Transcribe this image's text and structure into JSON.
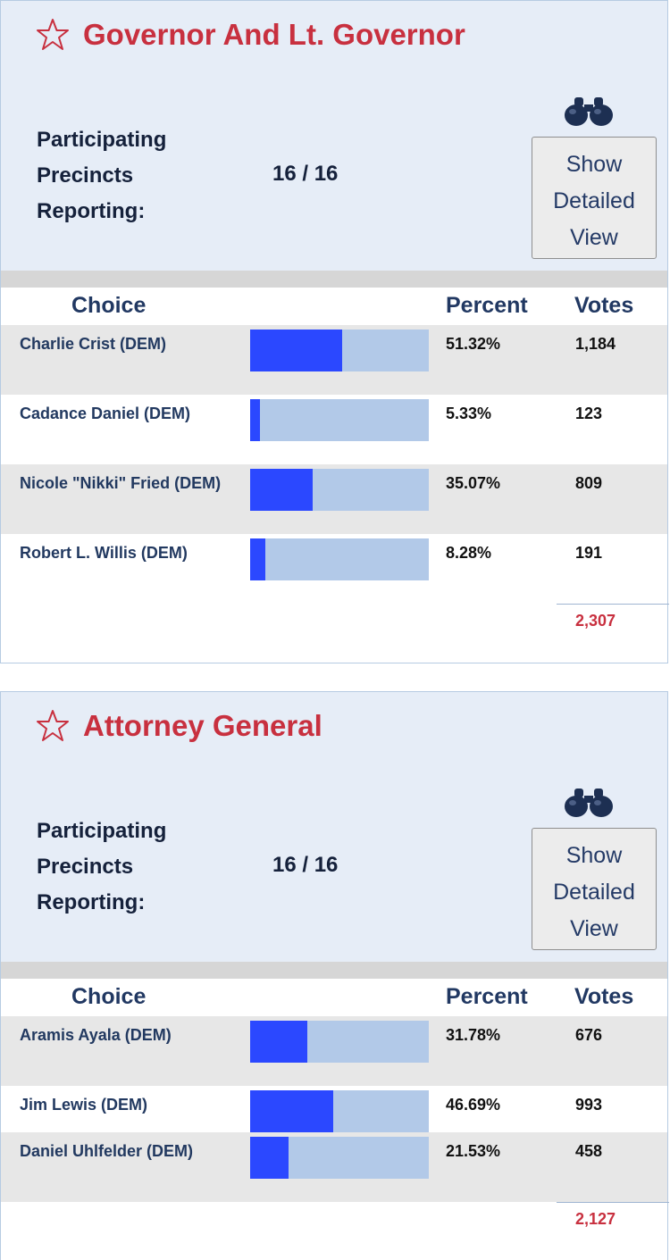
{
  "races": [
    {
      "title": "Governor And Lt. Governor",
      "precincts_label": "Participating Precincts Reporting:",
      "precincts_value": "16 / 16",
      "detail_button": [
        "Show",
        "Detailed",
        "View"
      ],
      "columns": {
        "choice": "Choice",
        "percent": "Percent",
        "votes": "Votes"
      },
      "candidates": [
        {
          "name": "Charlie Crist (DEM)",
          "percent": "51.32%",
          "share": 0.5132,
          "votes": "1,184"
        },
        {
          "name": "Cadance Daniel (DEM)",
          "percent": "5.33%",
          "share": 0.0533,
          "votes": "123"
        },
        {
          "name": "Nicole \"Nikki\" Fried (DEM)",
          "percent": "35.07%",
          "share": 0.3507,
          "votes": "809"
        },
        {
          "name": "Robert L. Willis (DEM)",
          "percent": "8.28%",
          "share": 0.0828,
          "votes": "191"
        }
      ],
      "total_votes": "2,307"
    },
    {
      "title": "Attorney General",
      "precincts_label": "Participating Precincts Reporting:",
      "precincts_value": "16 / 16",
      "detail_button": [
        "Show",
        "Detailed",
        "View"
      ],
      "columns": {
        "choice": "Choice",
        "percent": "Percent",
        "votes": "Votes"
      },
      "candidates": [
        {
          "name": "Aramis Ayala (DEM)",
          "percent": "31.78%",
          "share": 0.3178,
          "votes": "676"
        },
        {
          "name": "Jim Lewis (DEM)",
          "percent": "46.69%",
          "share": 0.4669,
          "votes": "993"
        },
        {
          "name": "Daniel Uhlfelder (DEM)",
          "percent": "21.53%",
          "share": 0.2153,
          "votes": "458"
        }
      ],
      "total_votes": "2,127"
    }
  ],
  "colors": {
    "accent": "#c8303f",
    "bar_fill": "#2b48ff",
    "bar_track": "#b2c9e8",
    "header_bg": "#e6edf7"
  },
  "icons": {
    "favorite": "star-outline-icon",
    "detail": "binoculars-icon"
  }
}
